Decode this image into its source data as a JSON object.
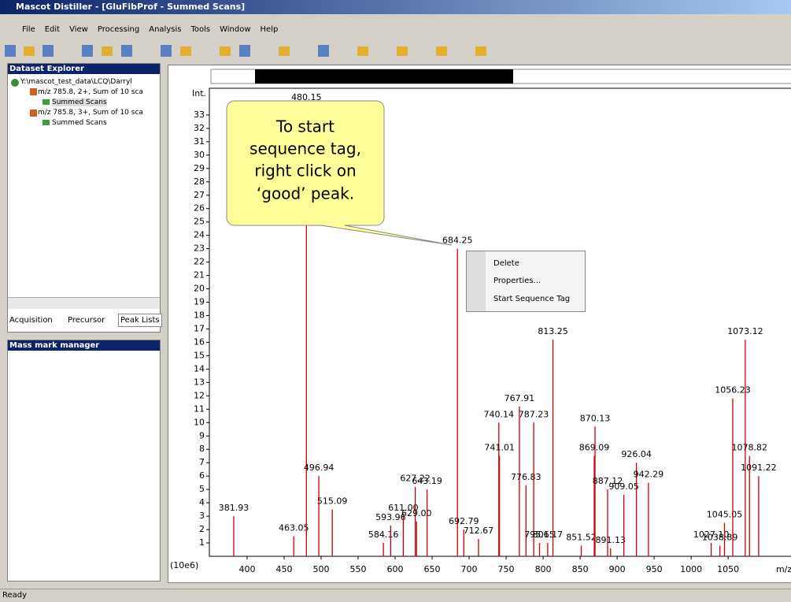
{
  "window": {
    "title": "Mascot Distiller - [GluFibProf - Summed Scans]",
    "menu": [
      "File",
      "Edit",
      "View",
      "Processing",
      "Analysis",
      "Tools",
      "Window",
      "Help"
    ],
    "status": "Ready"
  },
  "explorer": {
    "title": "Dataset Explorer",
    "tree": [
      "Y:\\mascot_test_data\\LCQ\\Darryl",
      "m/z 785.8, 2+, Sum of 10 sca",
      "Summed Scans",
      "m/z 785.8, 3+, Sum of 10 sca",
      "Summed Scans"
    ],
    "tabs": [
      "Acquisition",
      "Precursor",
      "Peak Lists"
    ]
  },
  "mass_mark": {
    "title": "Mass mark manager"
  },
  "spectrum": {
    "type": "stem",
    "y_label": "Int.",
    "y_unit": "(10e6)",
    "x_label": "m/z",
    "color": "#cc0000",
    "xlim": [
      349,
      1136
    ],
    "ylim": [
      0,
      35
    ],
    "xticks": [
      400,
      450,
      500,
      550,
      600,
      650,
      700,
      750,
      800,
      850,
      900,
      950,
      1000,
      1050
    ],
    "yticks": [
      1,
      2,
      3,
      4,
      5,
      6,
      7,
      8,
      9,
      10,
      11,
      12,
      13,
      14,
      15,
      16,
      17,
      18,
      19,
      20,
      21,
      22,
      23,
      24,
      25,
      26,
      27,
      28,
      29,
      30,
      31,
      32,
      33
    ],
    "x": [
      381.93,
      463.05,
      480.15,
      496.94,
      515.09,
      584.16,
      593.96,
      611.0,
      627.22,
      629.0,
      643.19,
      684.25,
      692.79,
      712.67,
      740.14,
      741.01,
      767.91,
      776.83,
      787.23,
      795.15,
      806.17,
      813.25,
      851.52,
      869.09,
      870.13,
      887.12,
      891.13,
      909.05,
      926.04,
      942.29,
      1027.1,
      1038.89,
      1045.05,
      1056.23,
      1073.12,
      1078.82,
      1091.22
    ],
    "x_labels": [
      "381.93",
      "463.05",
      "480.15",
      "496.94",
      "515.09",
      "584.16",
      "593.96",
      "611.00",
      "627.22",
      "629.00",
      "643.19",
      "684.25",
      "692.79",
      "712.67",
      "740.14",
      "741.01",
      "767.91",
      "776.83",
      "787.23",
      "795.15",
      "806.17",
      "813.25",
      "851.52",
      "869.09",
      "870.13",
      "887.12",
      "891.13",
      "909.05",
      "926.04",
      "942.29",
      "1027.10",
      "1038.89",
      "1045.05",
      "1056.23",
      "1073.12",
      "1078.82",
      "1091.22"
    ],
    "values": [
      3,
      1.5,
      34,
      6,
      3.5,
      1,
      2.3,
      3,
      5.2,
      2.6,
      5,
      23,
      2,
      1.3,
      10,
      7.5,
      11.2,
      5.3,
      10,
      1,
      1,
      16.2,
      0.8,
      7.5,
      9.7,
      5,
      0.6,
      4.6,
      7,
      5.5,
      1,
      0.8,
      2.5,
      11.8,
      16.2,
      7.5,
      6
    ]
  },
  "callout": {
    "lines": [
      "To start",
      "sequence tag,",
      "right click on",
      "‘good’ peak."
    ]
  },
  "context_menu": {
    "items": [
      "Delete",
      "Properties...",
      "Start Sequence Tag"
    ]
  }
}
